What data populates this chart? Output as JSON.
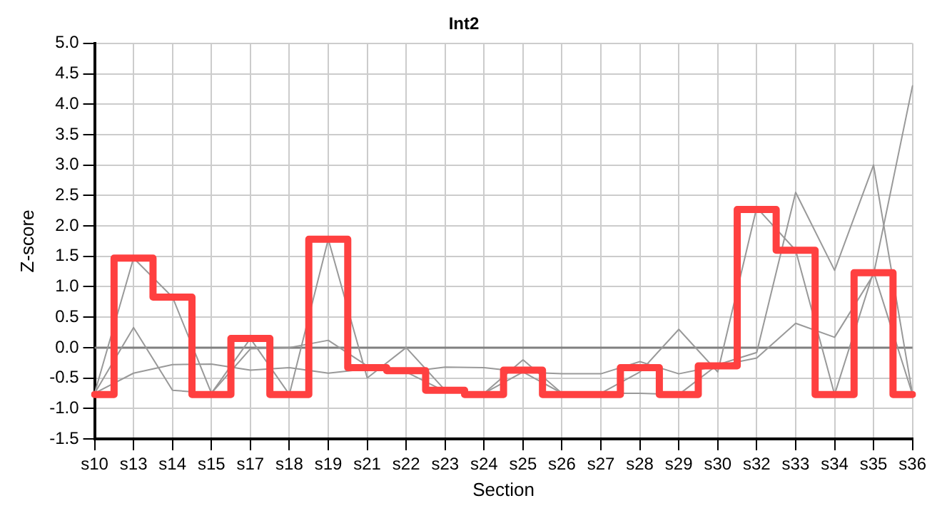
{
  "chart_data": {
    "type": "line",
    "title": "Int2",
    "xlabel": "Section",
    "ylabel": "Z-score",
    "categories": [
      "s10",
      "s13",
      "s14",
      "s15",
      "s17",
      "s18",
      "s19",
      "s21",
      "s22",
      "s23",
      "s24",
      "s25",
      "s26",
      "s27",
      "s28",
      "s29",
      "s30",
      "s32",
      "s33",
      "s34",
      "s35",
      "s36"
    ],
    "series": [
      {
        "type": "line",
        "color": "#999999",
        "values": [
          -0.75,
          1.47,
          0.83,
          -0.75,
          0.15,
          -0.77,
          1.78,
          -0.5,
          0.0,
          -0.7,
          -0.75,
          -0.4,
          -0.75,
          -0.75,
          -0.4,
          0.3,
          -0.4,
          2.3,
          1.6,
          -0.77,
          1.25,
          -0.77
        ]
      },
      {
        "type": "line",
        "color": "#999999",
        "values": [
          -0.75,
          0.33,
          -0.7,
          -0.75,
          -0.02,
          0.0,
          0.12,
          -0.3,
          -0.4,
          -0.72,
          -0.75,
          -0.2,
          -0.75,
          -0.75,
          -0.75,
          -0.77,
          -0.28,
          -0.08,
          2.55,
          1.27,
          3.0,
          -0.77
        ]
      },
      {
        "type": "line",
        "color": "#999999",
        "values": [
          -0.75,
          -0.42,
          -0.28,
          -0.27,
          -0.37,
          -0.33,
          -0.42,
          -0.35,
          -0.4,
          -0.32,
          -0.33,
          -0.4,
          -0.43,
          -0.43,
          -0.23,
          -0.43,
          -0.3,
          -0.17,
          0.4,
          0.17,
          1.2,
          4.3
        ]
      },
      {
        "type": "step",
        "color": "#ff4040",
        "values": [
          -0.77,
          1.47,
          0.83,
          -0.77,
          0.15,
          -0.77,
          1.78,
          -0.33,
          -0.38,
          -0.7,
          -0.77,
          -0.37,
          -0.77,
          -0.77,
          -0.33,
          -0.77,
          -0.3,
          2.27,
          1.6,
          -0.77,
          1.23,
          -0.77
        ]
      }
    ],
    "ylim": [
      -1.5,
      5.0
    ],
    "yticks": [
      {
        "value": -1.5,
        "label": "-1.5"
      },
      {
        "value": -1.0,
        "label": "-1.0"
      },
      {
        "value": -0.5,
        "label": "-0.5"
      },
      {
        "value": 0,
        "label": "0.0"
      },
      {
        "value": 0.5,
        "label": "0.5"
      },
      {
        "value": 1.0,
        "label": "1.0"
      },
      {
        "value": 1.5,
        "label": "1.5"
      },
      {
        "value": 2.0,
        "label": "2.0"
      },
      {
        "value": 2.5,
        "label": "2.5"
      },
      {
        "value": 3.0,
        "label": "3.0"
      },
      {
        "value": 3.5,
        "label": "3.5"
      },
      {
        "value": 4.0,
        "label": "4.0"
      },
      {
        "value": 4.5,
        "label": "4.5"
      },
      {
        "value": 5.0,
        "label": "5.0"
      }
    ],
    "ref_lines": [
      {
        "axis": "y",
        "value": 0,
        "color": "#808080"
      }
    ],
    "grid": true,
    "legend": false
  }
}
